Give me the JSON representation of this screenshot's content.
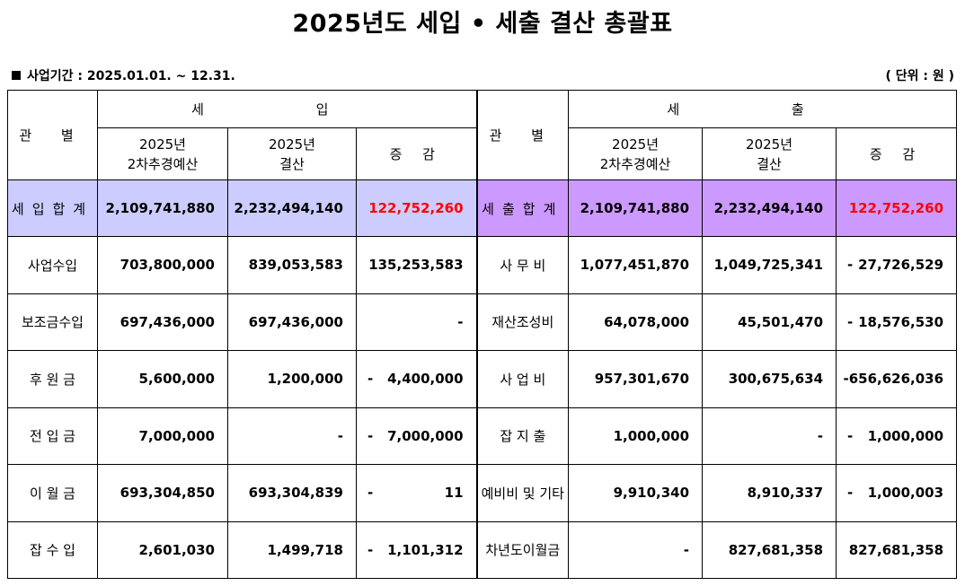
{
  "title": "2025년도 세입 • 세출 결산 총괄표",
  "period": "사업기간 : 2025.01.01. ~ 12.31.",
  "unit": "( 단위 : 원 )",
  "headers": {
    "category": "관 별",
    "income": "세 입",
    "expense": "세 출",
    "budget_line1": "2025년",
    "budget_line2": "2차추경예산",
    "settle_line1": "2025년",
    "settle_line2": "결산",
    "diff": "증 감"
  },
  "totals": {
    "income_label": "세입합계",
    "income_budget": "2,109,741,880",
    "income_settle": "2,232,494,140",
    "income_diff": "122,752,260",
    "expense_label": "세출합계",
    "expense_budget": "2,109,741,880",
    "expense_settle": "2,232,494,140",
    "expense_diff": "122,752,260"
  },
  "rows": [
    {
      "in_label": "사업수입",
      "in_budget": "703,800,000",
      "in_settle": "839,053,583",
      "in_sign": "",
      "in_diff": "135,253,583",
      "ex_label": "사 무 비",
      "ex_budget": "1,077,451,870",
      "ex_settle": "1,049,725,341",
      "ex_sign": "-",
      "ex_diff": "27,726,529"
    },
    {
      "in_label": "보조금수입",
      "in_budget": "697,436,000",
      "in_settle": "697,436,000",
      "in_sign": "",
      "in_diff": "-",
      "ex_label": "재산조성비",
      "ex_budget": "64,078,000",
      "ex_settle": "45,501,470",
      "ex_sign": "-",
      "ex_diff": "18,576,530"
    },
    {
      "in_label": "후 원 금",
      "in_budget": "5,600,000",
      "in_settle": "1,200,000",
      "in_sign": "-",
      "in_diff": "4,400,000",
      "ex_label": "사 업 비",
      "ex_budget": "957,301,670",
      "ex_settle": "300,675,634",
      "ex_sign": "",
      "ex_diff": "-656,626,036"
    },
    {
      "in_label": "전 입 금",
      "in_budget": "7,000,000",
      "in_settle": "-",
      "in_sign": "-",
      "in_diff": "7,000,000",
      "ex_label": "잡 지 출",
      "ex_budget": "1,000,000",
      "ex_settle": "-",
      "ex_sign": "-",
      "ex_diff": "1,000,000"
    },
    {
      "in_label": "이 월 금",
      "in_budget": "693,304,850",
      "in_settle": "693,304,839",
      "in_sign": "-",
      "in_diff": "11",
      "ex_label": "예비비 및 기타",
      "ex_budget": "9,910,340",
      "ex_settle": "8,910,337",
      "ex_sign": "-",
      "ex_diff": "1,000,003"
    },
    {
      "in_label": "잡 수 입",
      "in_budget": "2,601,030",
      "in_settle": "1,499,718",
      "in_sign": "-",
      "in_diff": "1,101,312",
      "ex_label": "차년도이월금",
      "ex_budget": "-",
      "ex_settle": "827,681,358",
      "ex_sign": "",
      "ex_diff": "827,681,358"
    }
  ]
}
